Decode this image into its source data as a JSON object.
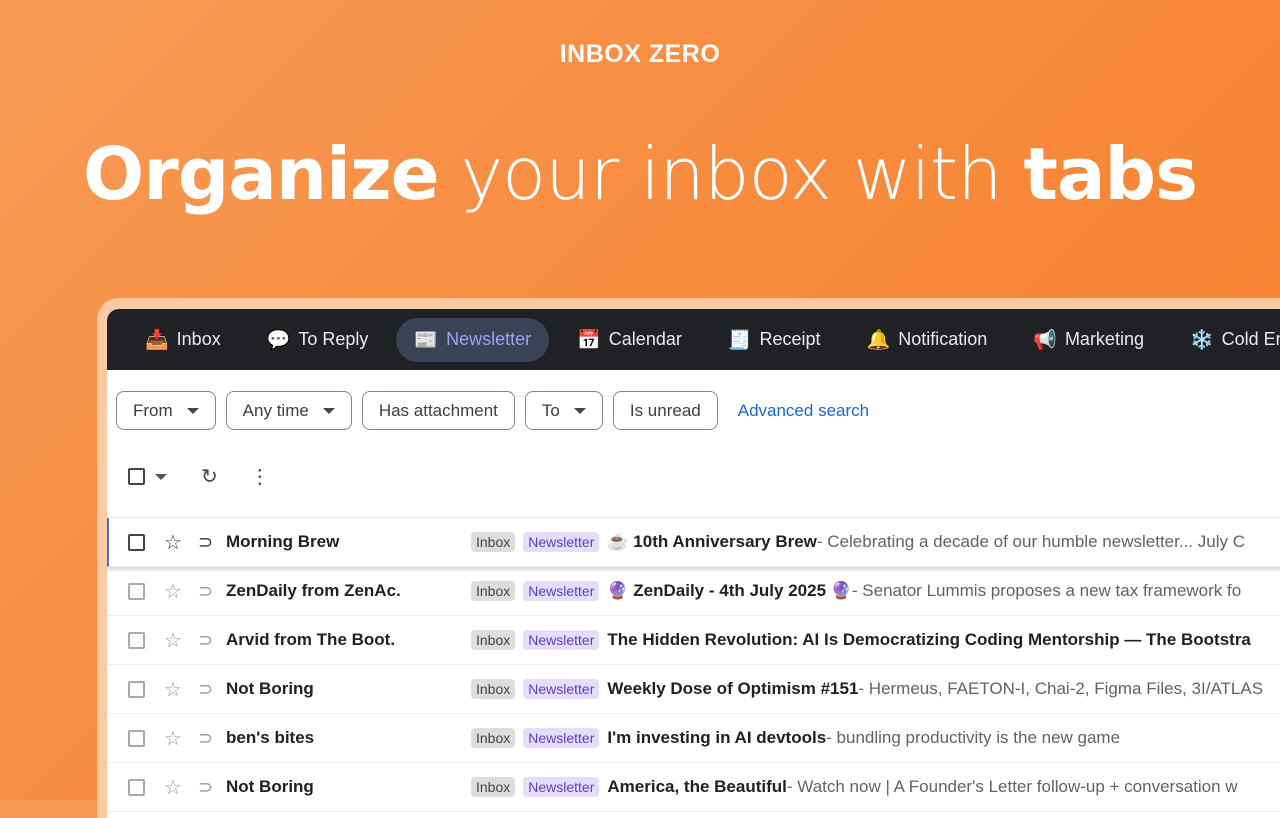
{
  "brand": "INBOX ZERO",
  "headline": {
    "part1": "Organize",
    "part2": " your inbox with ",
    "part3": "tabs"
  },
  "tabs": [
    {
      "icon": "📥",
      "label": "Inbox"
    },
    {
      "icon": "💬",
      "label": "To Reply"
    },
    {
      "icon": "📰",
      "label": "Newsletter",
      "active": true
    },
    {
      "icon": "📅",
      "label": "Calendar"
    },
    {
      "icon": "🧾",
      "label": "Receipt"
    },
    {
      "icon": "🔔",
      "label": "Notification"
    },
    {
      "icon": "📢",
      "label": "Marketing"
    },
    {
      "icon": "❄️",
      "label": "Cold Email"
    }
  ],
  "filters": {
    "from": "From",
    "any_time": "Any time",
    "has_attachment": "Has attachment",
    "to": "To",
    "is_unread": "Is unread",
    "advanced": "Advanced search"
  },
  "toolbar": {
    "refresh": "↻",
    "more": "⋮"
  },
  "emails": [
    {
      "sender": "Morning Brew",
      "labels": [
        "Inbox",
        "Newsletter"
      ],
      "subject": "☕ 10th Anniversary Brew",
      "snippet": " - Celebrating a decade of our humble newsletter... July C"
    },
    {
      "sender": "ZenDaily from ZenAc.",
      "labels": [
        "Inbox",
        "Newsletter"
      ],
      "subject": "🔮 ZenDaily - 4th July 2025 🔮",
      "snippet": " - Senator Lummis proposes a new tax framework fo"
    },
    {
      "sender": "Arvid from The Boot.",
      "labels": [
        "Inbox",
        "Newsletter"
      ],
      "subject": "The Hidden Revolution: AI Is Democratizing Coding Mentorship — The Bootstra",
      "snippet": ""
    },
    {
      "sender": "Not Boring",
      "labels": [
        "Inbox",
        "Newsletter"
      ],
      "subject": "Weekly Dose of Optimism #151",
      "snippet": " - Hermeus, FAETON-I, Chai-2, Figma Files, 3I/ATLAS"
    },
    {
      "sender": "ben's bites",
      "labels": [
        "Inbox",
        "Newsletter"
      ],
      "subject": "I'm investing in AI devtools",
      "snippet": " - bundling productivity is the new game"
    },
    {
      "sender": "Not Boring",
      "labels": [
        "Inbox",
        "Newsletter"
      ],
      "subject": "America, the Beautiful",
      "snippet": " - Watch now | A Founder's Letter follow-up + conversation w"
    }
  ]
}
